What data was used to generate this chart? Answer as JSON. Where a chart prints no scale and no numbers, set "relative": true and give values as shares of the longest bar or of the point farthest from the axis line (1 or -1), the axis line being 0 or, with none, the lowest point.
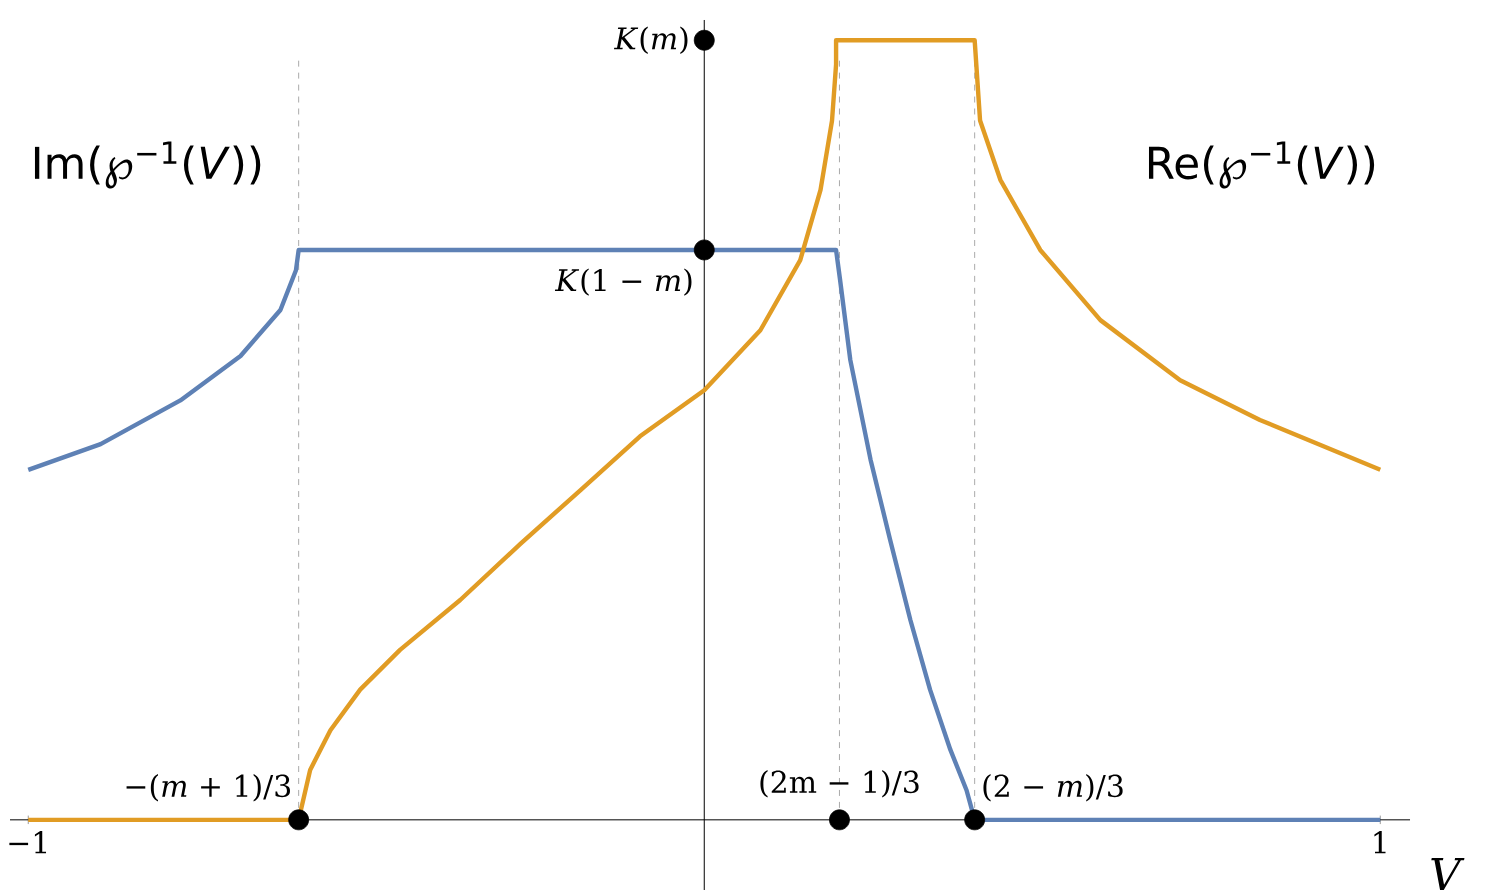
{
  "chart_data": {
    "type": "line",
    "relative": true,
    "xlabel": "*V*",
    "xlim": [
      -1.027,
      1.044
    ],
    "xticks": [
      {
        "value": -1,
        "label": "−1"
      },
      {
        "value": 1,
        "label": "1"
      }
    ],
    "series": [
      {
        "name": "Im(℘$^{−1}$(*V*))",
        "color": "#5e81b5",
        "x": [
          -1,
          -0.893,
          -0.775,
          -0.686,
          -0.627,
          -0.604,
          -0.6,
          0.195,
          0.201,
          0.216,
          0.246,
          0.275,
          0.305,
          0.334,
          0.364,
          0.388,
          0.4,
          1
        ],
        "values": [
          0.449,
          0.482,
          0.538,
          0.595,
          0.654,
          0.705,
          0.731,
          0.731,
          0.692,
          0.59,
          0.462,
          0.359,
          0.256,
          0.167,
          0.09,
          0.038,
          0,
          0
        ]
      },
      {
        "name": "Re(℘$^{−1}$(*V*))",
        "color": "#e19c24",
        "x": [
          -1,
          -0.6,
          -0.583,
          -0.553,
          -0.509,
          -0.45,
          -0.361,
          -0.272,
          -0.183,
          -0.095,
          0,
          0.083,
          0.142,
          0.172,
          0.189,
          0.195,
          0.195,
          0.4,
          0.408,
          0.438,
          0.497,
          0.586,
          0.704,
          0.822,
          1
        ],
        "values": [
          0,
          0,
          0.064,
          0.115,
          0.167,
          0.218,
          0.282,
          0.354,
          0.423,
          0.492,
          0.551,
          0.628,
          0.718,
          0.808,
          0.897,
          0.969,
          1,
          1,
          0.897,
          0.821,
          0.731,
          0.641,
          0.564,
          0.513,
          0.449
        ]
      },
      {
        "type": "scatter",
        "color": "#000000",
        "marker": "circle",
        "x": [
          -0.6,
          0.2,
          0.4,
          0,
          0
        ],
        "values": [
          0,
          0,
          0,
          1,
          0.731
        ]
      }
    ],
    "ref_lines": [
      {
        "axis": "x",
        "value": -0.6,
        "color": "#aaaaaa",
        "line_style": "dashed"
      },
      {
        "axis": "x",
        "value": 0.2,
        "color": "#aaaaaa",
        "line_style": "dashed"
      },
      {
        "axis": "x",
        "value": 0.4,
        "color": "#aaaaaa",
        "line_style": "dashed"
      }
    ],
    "annotations": [
      {
        "text": "*K*(*m*)",
        "x": 0,
        "y": 1
      },
      {
        "text": "*K*(1 − *m*)",
        "x": 0,
        "y": 0.731
      },
      {
        "text": "−(*m* + 1)/3",
        "x": -0.6,
        "y": 0
      },
      {
        "text": "(2m − 1)/3",
        "x": 0.2,
        "y": 0
      },
      {
        "text": "(2 − *m*)/3",
        "x": 0.4,
        "y": 0
      }
    ]
  }
}
